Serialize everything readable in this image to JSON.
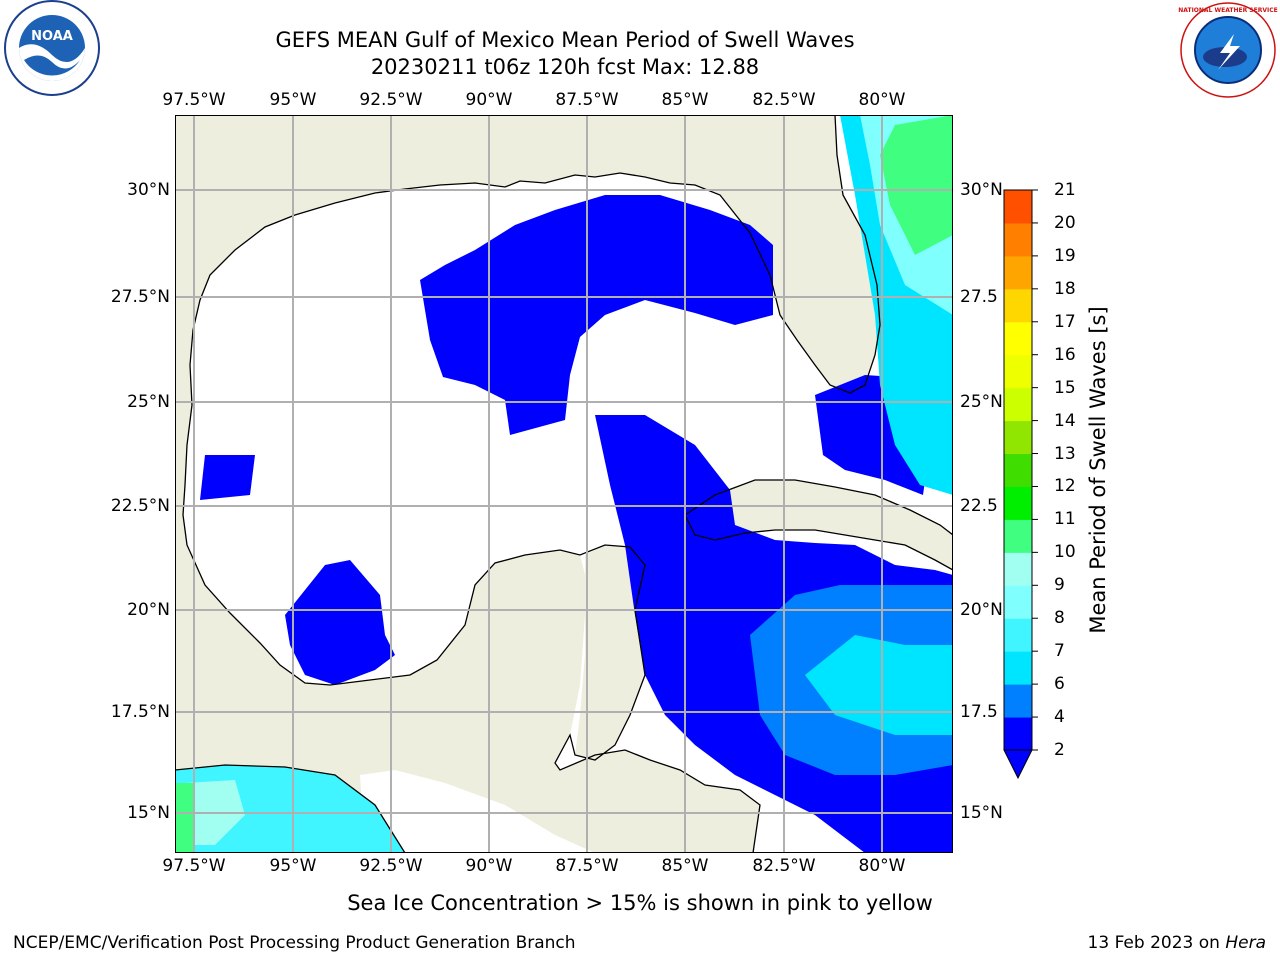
{
  "title": {
    "line1": "GEFS MEAN Gulf of Mexico Mean Period of Swell Waves",
    "line2": "20230211 t06z 120h fcst   Max: 12.88"
  },
  "map": {
    "lon_ticks": [
      "97.5°W",
      "95°W",
      "92.5°W",
      "90°W",
      "87.5°W",
      "85°W",
      "82.5°W",
      "80°W"
    ],
    "lat_ticks_left": [
      "30°N",
      "27.5°N",
      "25°N",
      "22.5°N",
      "20°N",
      "17.5°N",
      "15°N"
    ],
    "lat_ticks_right": [
      "30°N",
      "27.5",
      "25°N",
      "22.5",
      "20°N",
      "17.5",
      "15°N"
    ],
    "colors": {
      "land": "#eeeede",
      "ocean_blank": "#ffffff",
      "grid": "#b0b0b0"
    }
  },
  "colorbar": {
    "label": "Mean Period of Swell Waves [s]",
    "ticks": [
      "2",
      "4",
      "6",
      "7",
      "8",
      "9",
      "10",
      "11",
      "12",
      "13",
      "14",
      "15",
      "16",
      "17",
      "18",
      "19",
      "20",
      "21"
    ],
    "colors": [
      "#0000ff",
      "#0080ff",
      "#00e5ff",
      "#40f5ff",
      "#80ffff",
      "#a0fff0",
      "#40ff80",
      "#00ee00",
      "#40dd00",
      "#90e600",
      "#ccff00",
      "#eeff00",
      "#ffff00",
      "#ffd700",
      "#ffa500",
      "#ff8000",
      "#ff5000",
      "#ff2000",
      "#ff0000"
    ],
    "extend_color": "#0000ff"
  },
  "logos": {
    "left": "NOAA",
    "right": "NATIONAL WEATHER SERVICE"
  },
  "subtitle": "Sea Ice Concentration > 15% is shown in pink to yellow",
  "footer": {
    "left": "NCEP/EMC/Verification Post Processing Product Generation Branch",
    "right_prefix": "13 Feb 2023 on ",
    "right_host": "Hera"
  }
}
